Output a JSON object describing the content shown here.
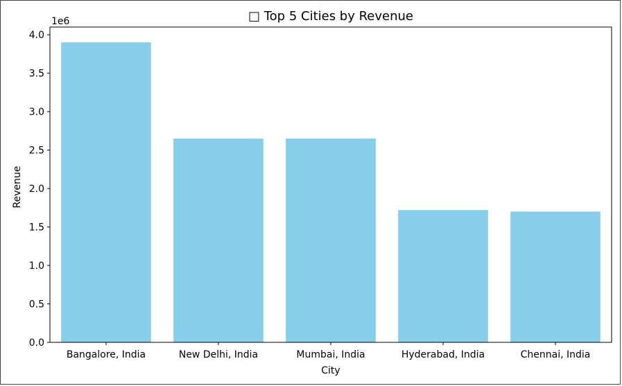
{
  "chart_data": {
    "type": "bar",
    "title": "□ Top 5 Cities by Revenue",
    "xlabel": "City",
    "ylabel": "Revenue",
    "y_offset_text": "1e6",
    "categories": [
      "Bangalore, India",
      "New Delhi, India",
      "Mumbai, India",
      "Hyderabad, India",
      "Chennai, India"
    ],
    "values": [
      3900000,
      2650000,
      2650000,
      1720000,
      1700000
    ],
    "ylim": [
      0,
      4100000
    ],
    "yticks": [
      0,
      500000,
      1000000,
      1500000,
      2000000,
      2500000,
      3000000,
      3500000,
      4000000
    ],
    "ytick_labels": [
      "0.0",
      "0.5",
      "1.0",
      "1.5",
      "2.0",
      "2.5",
      "3.0",
      "3.5",
      "4.0"
    ],
    "bar_color": "#87ceeb",
    "grid": false,
    "legend": "none"
  }
}
